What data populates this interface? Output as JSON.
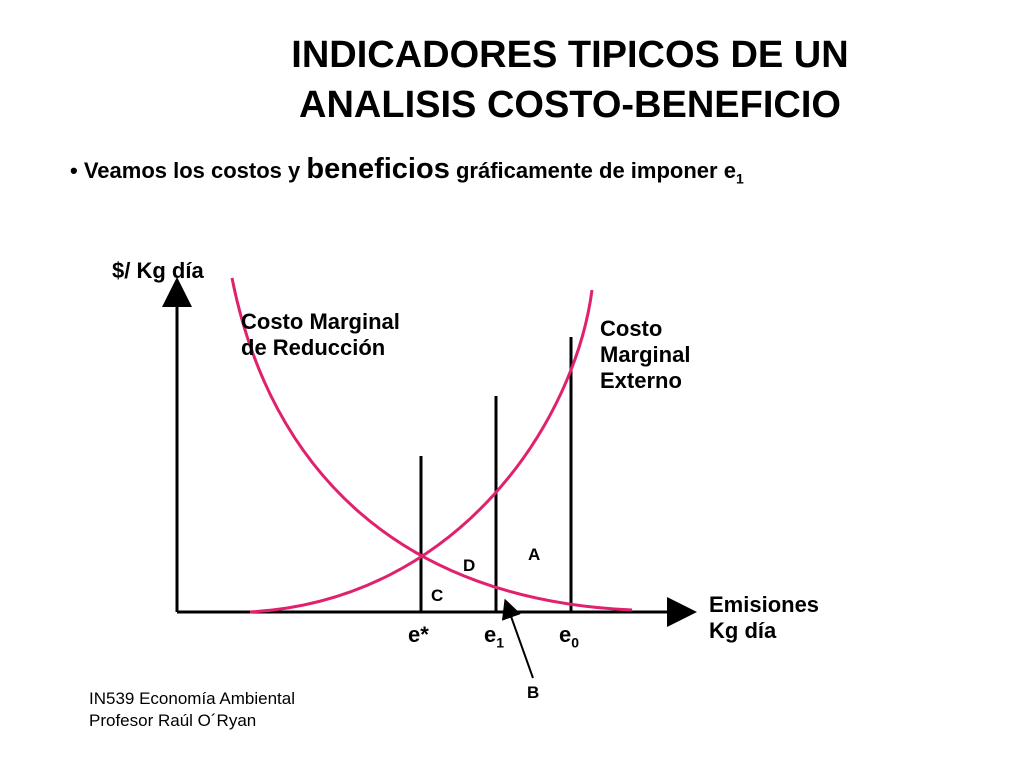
{
  "title": {
    "line1": "INDICADORES TIPICOS DE UN",
    "line2": "ANALISIS COSTO-BENEFICIO"
  },
  "bullet": {
    "marker": "•",
    "part1": "Veamos los costos y",
    "emphasis": "beneficios",
    "part2": "gráficamente de imponer e",
    "subscript": "1"
  },
  "diagram": {
    "y_axis_label": "$/ Kg día",
    "x_axis_label_line1": "Emisiones",
    "x_axis_label_line2": "Kg día",
    "mac_label_line1": "Costo Marginal",
    "mac_label_line2": "de Reducción",
    "mec_label_line1": "Costo",
    "mec_label_line2": "Marginal",
    "mec_label_line3": "Externo",
    "tick_estar": "e*",
    "tick_e1": "e",
    "tick_e1_sub": "1",
    "tick_e0": "e",
    "tick_e0_sub": "0",
    "region_a": "A",
    "region_b": "B",
    "region_c": "C",
    "region_d": "D",
    "curve_color": "#e0226e",
    "axis_color": "#000000"
  },
  "footer": {
    "line1": "IN539 Economía Ambiental",
    "line2": "Profesor Raúl O´Ryan"
  }
}
